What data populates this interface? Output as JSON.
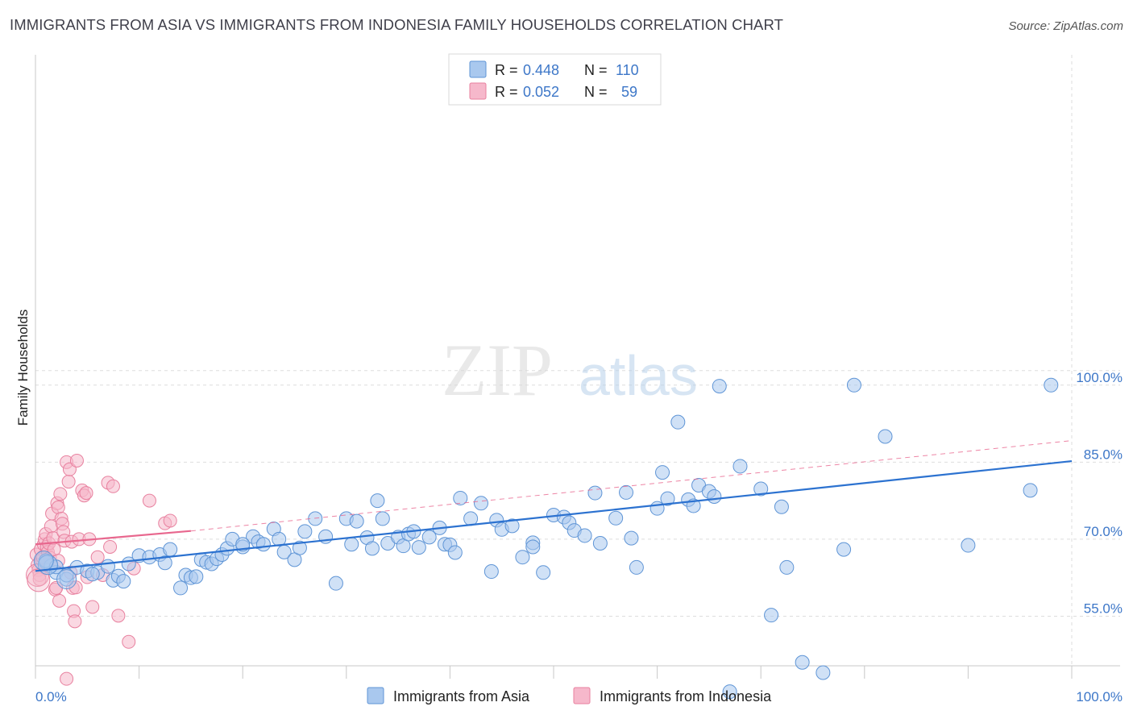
{
  "header": {
    "title": "IMMIGRANTS FROM ASIA VS IMMIGRANTS FROM INDONESIA FAMILY HOUSEHOLDS CORRELATION CHART",
    "source": "Source: ZipAtlas.com"
  },
  "watermark": {
    "zip": "ZIP",
    "atlas": "atlas"
  },
  "colors": {
    "blue_fill": "#a9c8ee",
    "blue_stroke": "#5f95d6",
    "blue_line": "#2c72d0",
    "pink_fill": "#f6b8cb",
    "pink_stroke": "#e8819f",
    "pink_line": "#e8678e",
    "tick_text": "#3d77c8",
    "grid": "#dddddd"
  },
  "legend": {
    "r_label": "R =",
    "n_label": "N =",
    "blue": {
      "r": "0.448",
      "n": "110"
    },
    "pink": {
      "r": "0.052",
      "n": "59"
    }
  },
  "chart_data": {
    "type": "scatter",
    "title": "IMMIGRANTS FROM ASIA VS IMMIGRANTS FROM INDONESIA FAMILY HOUSEHOLDS CORRELATION CHART",
    "xlabel": "",
    "ylabel": "Family Households",
    "x_tick_labels": [
      "0.0%",
      "100.0%"
    ],
    "y_tick_labels": [
      "55.0%",
      "70.0%",
      "85.0%",
      "100.0%"
    ],
    "y_ticks": [
      55,
      70,
      85,
      100
    ],
    "xlim": [
      0,
      100
    ],
    "ylim": [
      40,
      101.5
    ],
    "grid": true,
    "legend_position": "top-center",
    "series": [
      {
        "name": "Immigrants from Asia",
        "color": "#a9c8ee",
        "trend": {
          "x0": 0,
          "y0": 63.8,
          "x1": 100,
          "y1": 85.2,
          "style": "solid"
        },
        "points": [
          [
            1,
            65.5
          ],
          [
            1.5,
            64.8
          ],
          [
            2,
            63.5
          ],
          [
            3,
            62.2
          ],
          [
            4,
            64.5
          ],
          [
            5,
            63.8
          ],
          [
            6,
            63.5
          ],
          [
            7,
            64.7
          ],
          [
            7.5,
            62
          ],
          [
            8,
            62.8
          ],
          [
            9,
            65.2
          ],
          [
            10,
            66.8
          ],
          [
            11,
            66.5
          ],
          [
            12,
            67
          ],
          [
            12.5,
            65.4
          ],
          [
            13,
            68
          ],
          [
            14,
            60.5
          ],
          [
            14.5,
            63
          ],
          [
            15,
            62.5
          ],
          [
            16,
            66
          ],
          [
            16.5,
            65.5
          ],
          [
            17,
            65.2
          ],
          [
            17.5,
            66.2
          ],
          [
            18,
            67
          ],
          [
            18.5,
            68.2
          ],
          [
            19,
            70
          ],
          [
            20,
            68.5
          ],
          [
            21,
            70.5
          ],
          [
            21.5,
            69.5
          ],
          [
            22,
            69
          ],
          [
            23,
            72
          ],
          [
            23.5,
            70
          ],
          [
            24,
            67.5
          ],
          [
            25,
            66
          ],
          [
            25.5,
            68.3
          ],
          [
            26,
            71.5
          ],
          [
            27,
            74
          ],
          [
            28,
            70.5
          ],
          [
            29,
            61.4
          ],
          [
            30,
            74
          ],
          [
            30.5,
            69
          ],
          [
            31,
            73.5
          ],
          [
            32,
            70.3
          ],
          [
            32.5,
            68.2
          ],
          [
            33,
            77.5
          ],
          [
            34,
            69.2
          ],
          [
            35,
            70.4
          ],
          [
            35.5,
            68.7
          ],
          [
            36,
            71
          ],
          [
            36.5,
            71.5
          ],
          [
            37,
            68.4
          ],
          [
            38,
            70.4
          ],
          [
            39,
            72.2
          ],
          [
            39.5,
            69
          ],
          [
            40,
            68.9
          ],
          [
            40.5,
            67.4
          ],
          [
            41,
            78
          ],
          [
            42,
            74
          ],
          [
            43,
            77
          ],
          [
            44,
            63.7
          ],
          [
            44.5,
            73.7
          ],
          [
            45,
            71.9
          ],
          [
            46,
            72.6
          ],
          [
            47,
            66.5
          ],
          [
            48,
            69.3
          ],
          [
            49,
            63.5
          ],
          [
            50,
            74.7
          ],
          [
            51,
            74.3
          ],
          [
            51.5,
            73.2
          ],
          [
            52,
            71.7
          ],
          [
            53,
            70.7
          ],
          [
            54,
            79
          ],
          [
            54.5,
            69.2
          ],
          [
            56,
            74.1
          ],
          [
            57,
            79.1
          ],
          [
            57.5,
            70.2
          ],
          [
            58,
            64.5
          ],
          [
            60,
            76
          ],
          [
            60.5,
            83
          ],
          [
            61,
            77.9
          ],
          [
            62,
            92.8
          ],
          [
            63,
            77.7
          ],
          [
            63.5,
            76.5
          ],
          [
            64,
            80.5
          ],
          [
            65,
            79.3
          ],
          [
            65.5,
            78.3
          ],
          [
            66,
            99.8
          ],
          [
            67,
            40.3
          ],
          [
            68,
            84.2
          ],
          [
            70,
            79.8
          ],
          [
            71,
            55.2
          ],
          [
            72,
            76.3
          ],
          [
            72.5,
            64.5
          ],
          [
            74,
            46
          ],
          [
            76,
            44
          ],
          [
            78,
            68
          ],
          [
            79,
            100
          ],
          [
            82,
            90
          ],
          [
            90,
            68.8
          ],
          [
            96,
            79.5
          ],
          [
            98,
            100
          ],
          [
            1,
            65.8
          ],
          [
            2,
            64.6
          ],
          [
            3,
            63
          ],
          [
            5.5,
            63.2
          ],
          [
            8.5,
            61.8
          ],
          [
            15.5,
            62.7
          ],
          [
            20,
            69
          ],
          [
            33.5,
            74
          ],
          [
            48,
            68.5
          ]
        ]
      },
      {
        "name": "Immigrants from Indonesia",
        "color": "#f6b8cb",
        "trend": {
          "x0": 0,
          "y0": 69,
          "x1": 15,
          "y1": 71.6,
          "style": "solid",
          "dashed_to": {
            "x": 100,
            "y": 89.2
          }
        },
        "points": [
          [
            0.1,
            67
          ],
          [
            0.2,
            65
          ],
          [
            0.3,
            64
          ],
          [
            0.4,
            63
          ],
          [
            0.4,
            62.2
          ],
          [
            0.5,
            68
          ],
          [
            0.6,
            66
          ],
          [
            0.7,
            66.5
          ],
          [
            0.8,
            69
          ],
          [
            0.9,
            70
          ],
          [
            1,
            71
          ],
          [
            1.1,
            68.5
          ],
          [
            1.2,
            67.5
          ],
          [
            1.3,
            69.2
          ],
          [
            1.4,
            66.4
          ],
          [
            1.5,
            72.5
          ],
          [
            1.6,
            75
          ],
          [
            1.7,
            70.2
          ],
          [
            1.8,
            68
          ],
          [
            1.9,
            60.2
          ],
          [
            2,
            60.5
          ],
          [
            2.1,
            77
          ],
          [
            2.2,
            76.2
          ],
          [
            2.3,
            58
          ],
          [
            2.4,
            78.8
          ],
          [
            2.5,
            74
          ],
          [
            2.6,
            73
          ],
          [
            2.7,
            71.4
          ],
          [
            2.8,
            69.7
          ],
          [
            3,
            85
          ],
          [
            3.2,
            81.2
          ],
          [
            3.3,
            83.6
          ],
          [
            3.4,
            63.5
          ],
          [
            3.5,
            69.5
          ],
          [
            3.6,
            60.5
          ],
          [
            3.7,
            56
          ],
          [
            3.8,
            54
          ],
          [
            3.9,
            60.6
          ],
          [
            4,
            85.3
          ],
          [
            4.2,
            70
          ],
          [
            4.5,
            79.5
          ],
          [
            4.7,
            78.5
          ],
          [
            4.9,
            79
          ],
          [
            5,
            62.6
          ],
          [
            5.2,
            70
          ],
          [
            5.5,
            56.8
          ],
          [
            6,
            66.5
          ],
          [
            6.5,
            63
          ],
          [
            7,
            81
          ],
          [
            7.2,
            68.5
          ],
          [
            7.5,
            80.3
          ],
          [
            8,
            55.1
          ],
          [
            9,
            50
          ],
          [
            9.5,
            64.3
          ],
          [
            11,
            77.5
          ],
          [
            12.5,
            73.1
          ],
          [
            13,
            73.6
          ],
          [
            3,
            42.8
          ],
          [
            2.2,
            65.8
          ]
        ]
      }
    ]
  },
  "bottom_legend": {
    "blue_label": "Immigrants from Asia",
    "pink_label": "Immigrants from Indonesia"
  }
}
